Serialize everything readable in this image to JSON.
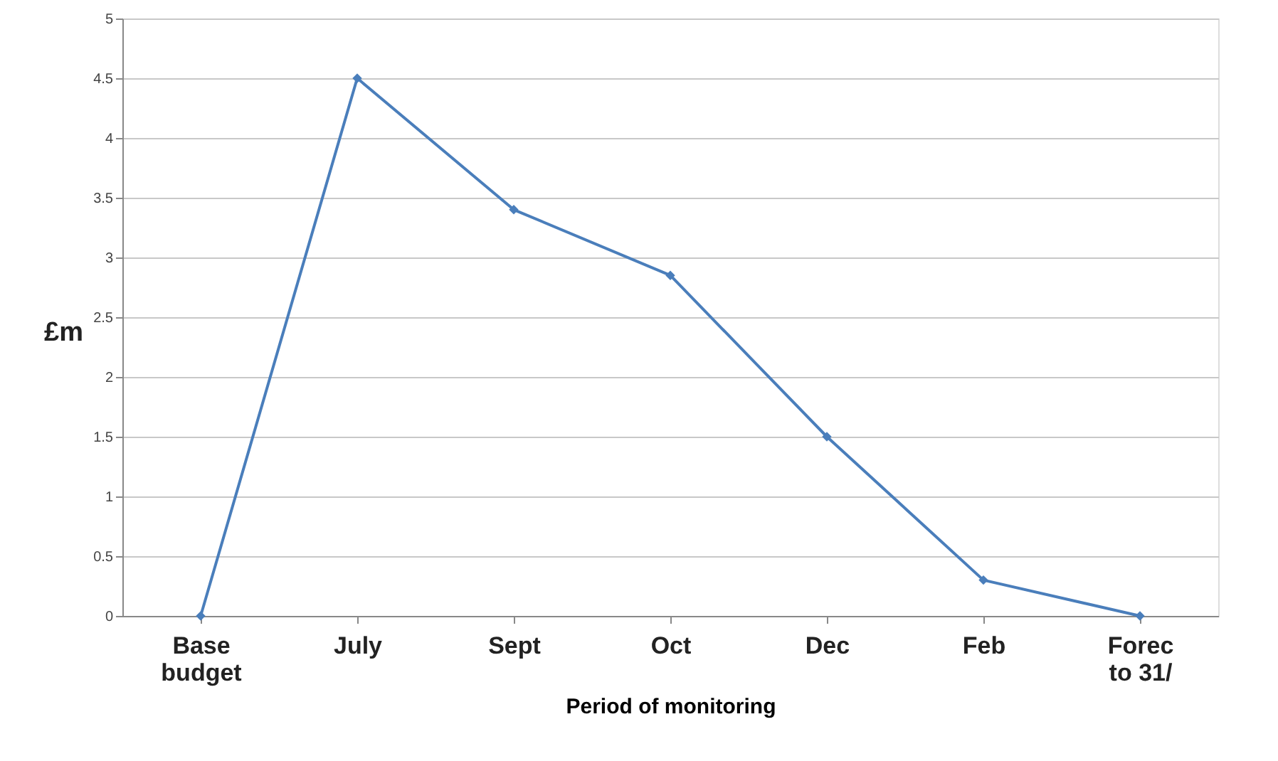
{
  "chart_data": {
    "type": "line",
    "xlabel": "Period of monitoring",
    "ylabel": "£m",
    "categories": [
      "Base\nbudget",
      "July",
      "Sept",
      "Oct",
      "Dec",
      "Feb",
      "Forec\nto 31/"
    ],
    "series": [
      {
        "color": "#4a7ebb",
        "values": [
          0,
          4.5,
          3.4,
          2.85,
          1.5,
          0.3,
          0
        ]
      }
    ],
    "ylim": [
      0,
      5
    ],
    "yticks": [
      0,
      0.5,
      1,
      1.5,
      2,
      2.5,
      3,
      3.5,
      4,
      4.5,
      5
    ],
    "grid": "y",
    "legend": false,
    "marker": "diamond",
    "line_style": "solid"
  }
}
